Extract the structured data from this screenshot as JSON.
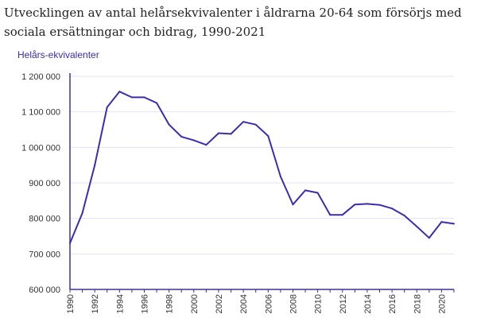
{
  "chart_data": {
    "type": "line",
    "title": "Utvecklingen av antal helårsekvivalenter i åldrarna 20-64 som försörjs med sociala ersättningar och bidrag, 1990-2021",
    "xlabel": "",
    "ylabel": "Helårs-ekvivalenter",
    "ylim": [
      600000,
      1200000
    ],
    "xlim": [
      1990,
      2021
    ],
    "grid": "horizontal",
    "line_color": "#3b2db0",
    "grid_color": "#e6e0f4",
    "axis_color": "#3b2db0",
    "y_ticks": [
      {
        "value": 600000,
        "label": "600 000"
      },
      {
        "value": 700000,
        "label": "700 000"
      },
      {
        "value": 800000,
        "label": "800 000"
      },
      {
        "value": 900000,
        "label": "900 000"
      },
      {
        "value": 1000000,
        "label": "1 000 000"
      },
      {
        "value": 1100000,
        "label": "1 100 000"
      },
      {
        "value": 1200000,
        "label": "1 200 000"
      }
    ],
    "x_ticks": [
      {
        "value": 1990,
        "label": "1990"
      },
      {
        "value": 1992,
        "label": "1992"
      },
      {
        "value": 1994,
        "label": "1994"
      },
      {
        "value": 1996,
        "label": "1996"
      },
      {
        "value": 1998,
        "label": "1998"
      },
      {
        "value": 2000,
        "label": "2000"
      },
      {
        "value": 2002,
        "label": "2002"
      },
      {
        "value": 2004,
        "label": "2004"
      },
      {
        "value": 2006,
        "label": "2006"
      },
      {
        "value": 2008,
        "label": "2008"
      },
      {
        "value": 2010,
        "label": "2010"
      },
      {
        "value": 2012,
        "label": "2012"
      },
      {
        "value": 2014,
        "label": "2014"
      },
      {
        "value": 2016,
        "label": "2016"
      },
      {
        "value": 2018,
        "label": "2018"
      },
      {
        "value": 2020,
        "label": "2020"
      }
    ],
    "series": [
      {
        "x": [
          1990,
          1991,
          1992,
          1993,
          1994,
          1995,
          1996,
          1997,
          1998,
          1999,
          2000,
          2001,
          2002,
          2003,
          2004,
          2005,
          2006,
          2007,
          2008,
          2009,
          2010,
          2011,
          2012,
          2013,
          2014,
          2015,
          2016,
          2017,
          2018,
          2019,
          2020,
          2021
        ],
        "values": [
          730000,
          815000,
          950000,
          1113000,
          1157000,
          1141000,
          1141000,
          1125000,
          1064000,
          1030000,
          1020000,
          1007000,
          1040000,
          1038000,
          1072000,
          1064000,
          1032000,
          918000,
          839000,
          879000,
          872000,
          810000,
          810000,
          839000,
          841000,
          838000,
          828000,
          808000,
          777000,
          745000,
          790000,
          785000
        ]
      }
    ]
  }
}
